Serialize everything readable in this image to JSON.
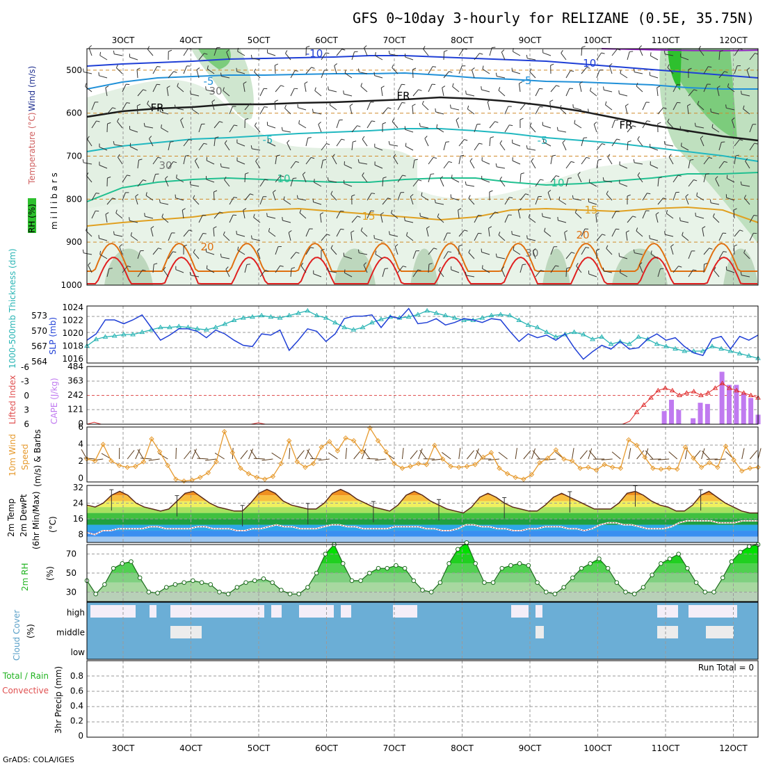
{
  "title": "GFS 0~10day 3-hourly for RELIZANE (0.5E, 35.75N)",
  "footer": "GrADS: COLA/IGES",
  "run_total": "Run Total = 0",
  "dates": [
    "3OCT",
    "4OCT",
    "5OCT",
    "6OCT",
    "7OCT",
    "8OCT",
    "9OCT",
    "10OCT",
    "11OCT",
    "12OCT"
  ],
  "colors": {
    "rh_shade": "#cfe6cf",
    "temp_orange": "#e08a00",
    "wind_speed": "#e69a2e",
    "rh_green": "#22b422",
    "cloud_blue": "#6baed6",
    "cape_purple": "#c07af0",
    "slp_blue": "#1f3fd6",
    "thickness_cyan": "#28b4b4"
  },
  "panels": {
    "upper": {
      "ylabels": {
        "rh": "RH (%)",
        "temp": "Temperature (°C)",
        "wind": "Wind (m/s)",
        "units": "m i l l i b a r s"
      },
      "yticks": [
        "500",
        "600",
        "700",
        "800",
        "900",
        "1000"
      ],
      "contour_labels": [
        "-10",
        "-10",
        "-5",
        "-5",
        "FR",
        "FR",
        "FR",
        "-5",
        "-5",
        "10",
        "10",
        "15",
        "15",
        "20",
        "20",
        "30",
        "30",
        "30"
      ]
    },
    "slp": {
      "ylabel_left": "1000-500mb Thickness (dm)",
      "ylabel_right": "SLP (mb)",
      "yticks_left": [
        "573",
        "570",
        "567",
        "564"
      ],
      "yticks_right": [
        "1024",
        "1022",
        "1020",
        "1018",
        "1016"
      ]
    },
    "cape": {
      "ylabel_left": "Lifted Index",
      "ylabel_right": "CAPE (J/kg)",
      "yticks_left": [
        "-6",
        "-3",
        "0",
        "3",
        "6"
      ],
      "yticks_right": [
        "484",
        "363",
        "242",
        "121",
        "0"
      ]
    },
    "wind10": {
      "ylabel_a": "10m Wind",
      "ylabel_b": "Speed",
      "ylabel_c": "(m/s) & Barbs",
      "yticks": [
        "6",
        "4",
        "2",
        "0"
      ]
    },
    "temp2m": {
      "ylabel_a": "2m Temp",
      "ylabel_b": "2m DewPt",
      "ylabel_c": "(6hr Min/Max)",
      "ylabel_d": "(°C)",
      "yticks": [
        "32",
        "24",
        "16",
        "8"
      ]
    },
    "rh2m": {
      "ylabel": "2m RH",
      "units": "(%)",
      "yticks": [
        "70",
        "50",
        "30"
      ]
    },
    "cloud": {
      "ylabel": "Cloud Cover",
      "units": "(%)",
      "yticks": [
        "high",
        "middle",
        "low"
      ]
    },
    "precip": {
      "ylabel_a": "Total / Rain",
      "ylabel_b": "Convective",
      "ylabel_c": "3hr Precip (mm)",
      "yticks": [
        "0.8",
        "0.6",
        "0.4",
        "0.2",
        "0"
      ]
    }
  },
  "chart_data": [
    {
      "type": "line",
      "name": "slp",
      "x_step_hours": 3,
      "values": [
        1018.6,
        1019.6,
        1021.8,
        1021.8,
        1021.2,
        1021.8,
        1022.6,
        1020.6,
        1018.6,
        1019.4,
        1020.4,
        1020.4,
        1020.0,
        1019.0,
        1020.2,
        1019.6,
        1018.6,
        1017.8,
        1017.6,
        1019.6,
        1019.4,
        1020.2,
        1017.0,
        1018.6,
        1020.4,
        1020.0,
        1018.4,
        1019.6,
        1022.0,
        1022.4,
        1022.4,
        1022.6,
        1020.6,
        1022.4,
        1022.0,
        1023.6,
        1021.2,
        1021.4,
        1022.0,
        1021.0,
        1021.4,
        1022.0,
        1021.8,
        1021.4,
        1022.0,
        1021.8,
        1020.0,
        1018.4,
        1019.6,
        1019.0,
        1019.4,
        1018.6,
        1019.6,
        1017.4,
        1015.6,
        1016.8,
        1017.8,
        1017.2,
        1018.4,
        1017.2,
        1017.4,
        1018.8,
        1019.6,
        1018.6,
        1019.0,
        1017.6,
        1016.6,
        1016.2,
        1018.8,
        1019.2,
        1017.2,
        1019.2,
        1018.6,
        1019.4
      ],
      "ylim": [
        1015,
        1024
      ]
    },
    {
      "type": "line",
      "name": "thickness",
      "values": [
        566.6,
        568.0,
        568.5,
        568.7,
        569.0,
        569.0,
        569.5,
        570.0,
        570.5,
        570.5,
        570.7,
        570.5,
        570.2,
        570.0,
        570.5,
        571.2,
        572.0,
        572.5,
        572.7,
        573.0,
        572.7,
        572.5,
        573.0,
        573.5,
        574.0,
        573.0,
        572.5,
        571.5,
        570.5,
        570.0,
        570.5,
        571.5,
        572.2,
        572.7,
        572.5,
        572.7,
        573.2,
        574.0,
        573.5,
        573.0,
        572.5,
        572.0,
        572.0,
        572.5,
        573.0,
        573.2,
        573.0,
        572.0,
        571.0,
        570.5,
        569.5,
        568.5,
        569.0,
        569.5,
        569.0,
        568.0,
        568.5,
        567.0,
        567.5,
        567.0,
        568.5,
        568.0,
        567.0,
        566.5,
        566.0,
        565.5,
        565.5,
        565.5,
        566.5,
        566.0,
        565.5,
        565.0,
        564.5,
        564.0
      ],
      "ylim": [
        563,
        575
      ]
    },
    {
      "type": "line",
      "name": "lifted_index",
      "values": [
        6,
        5.6,
        6,
        6,
        6,
        6,
        6,
        6,
        6,
        6,
        6,
        6,
        6,
        6,
        6,
        6,
        6,
        6,
        6,
        6,
        6,
        6,
        6,
        6,
        5.7,
        6,
        6,
        6,
        6,
        6,
        6,
        6,
        6,
        6,
        6,
        6,
        6,
        6,
        6,
        6,
        6,
        6,
        6,
        6,
        6,
        6,
        6,
        6,
        6,
        6,
        6,
        6,
        6,
        6,
        6,
        6,
        6,
        6,
        6,
        6,
        6,
        6,
        6,
        6,
        6,
        6,
        6,
        6,
        6,
        6,
        6,
        6,
        6,
        6,
        6,
        6,
        5.4,
        3.5,
        2,
        0.5,
        -1,
        -1.5,
        -1,
        0,
        -0.5,
        -0.8,
        0,
        -0.5,
        -1.5,
        -2.5,
        -1.5,
        -1.0,
        -0.5,
        0,
        0.5
      ],
      "ylim": [
        6,
        -6
      ]
    },
    {
      "type": "bar",
      "name": "cape",
      "values": [
        0,
        0,
        0,
        0,
        0,
        0,
        0,
        0,
        0,
        0,
        0,
        0,
        0,
        0,
        0,
        0,
        0,
        0,
        0,
        0,
        0,
        0,
        0,
        0,
        0,
        0,
        0,
        0,
        0,
        0,
        0,
        0,
        0,
        0,
        0,
        0,
        0,
        0,
        0,
        0,
        0,
        0,
        0,
        0,
        0,
        0,
        0,
        0,
        0,
        0,
        0,
        0,
        0,
        0,
        0,
        0,
        0,
        0,
        0,
        0,
        0,
        0,
        0,
        0,
        0,
        0,
        0,
        0,
        0,
        0,
        0,
        0,
        0,
        0,
        0,
        0,
        0,
        0,
        0,
        0,
        110,
        205,
        120,
        0,
        50,
        180,
        170,
        0,
        440,
        330,
        330,
        260,
        220,
        80
      ],
      "ylim": [
        0,
        484
      ]
    },
    {
      "type": "line",
      "name": "wind_speed_10m",
      "values": [
        2.5,
        2.3,
        4.1,
        2.3,
        1.8,
        1.6,
        1.7,
        2.2,
        4.7,
        3.3,
        1.8,
        0.3,
        0.1,
        0.2,
        0.5,
        1.0,
        2.2,
        5.5,
        3.2,
        1.5,
        0.9,
        0.5,
        0.3,
        0.6,
        2.0,
        4.5,
        2.2,
        1.6,
        2.0,
        3.8,
        4.4,
        3.4,
        4.8,
        4.5,
        3.3,
        5.9,
        4.5,
        3.3,
        2.0,
        1.5,
        1.7,
        2.0,
        1.9,
        4.0,
        2.5,
        1.7,
        1.6,
        1.7,
        1.9,
        2.7,
        3.2,
        1.5,
        0.9,
        0.5,
        0.3,
        0.8,
        2.1,
        2.6,
        3.5,
        2.5,
        2.3,
        1.5,
        1.6,
        1.3,
        1.9,
        1.6,
        1.5,
        4.6,
        4.0,
        2.7,
        1.5,
        1.4,
        1.5,
        1.4,
        3.8,
        2.6,
        1.6,
        2.1,
        1.6,
        3.9,
        2.4,
        1.2,
        1.5,
        1.6
      ],
      "ylim": [
        0,
        6
      ]
    },
    {
      "type": "area",
      "name": "temp_2m",
      "values": [
        23,
        22,
        24,
        28,
        30,
        28,
        24,
        22,
        21,
        20,
        21,
        25,
        29,
        30,
        27,
        24,
        22,
        21,
        20,
        20,
        24,
        29,
        31,
        29,
        25,
        23,
        22,
        21,
        21,
        24,
        29,
        31,
        29,
        26,
        24,
        22,
        21,
        20,
        23,
        28,
        30,
        28,
        25,
        23,
        21,
        20,
        19,
        22,
        27,
        29,
        27,
        24,
        22,
        21,
        20,
        20,
        23,
        27,
        29,
        27,
        25,
        23,
        21,
        21,
        21,
        24,
        29,
        30,
        28,
        25,
        23,
        22,
        20,
        20,
        23,
        28,
        30,
        27,
        24,
        22,
        20,
        19,
        19
      ],
      "ylim": [
        4,
        33
      ]
    },
    {
      "type": "line",
      "name": "dewpoint_2m",
      "values": [
        9,
        8,
        10,
        10,
        11,
        11,
        11,
        11,
        12,
        12,
        11,
        11,
        11,
        11,
        12,
        12,
        11,
        11,
        11,
        10,
        10,
        11,
        11,
        12,
        13,
        12,
        12,
        11,
        11,
        11,
        12,
        13,
        13,
        12,
        12,
        11,
        11,
        11,
        11,
        12,
        12,
        12,
        12,
        11,
        11,
        10,
        10,
        11,
        13,
        13,
        12,
        12,
        11,
        11,
        10,
        10,
        11,
        11,
        12,
        12,
        12,
        11,
        11,
        10,
        11,
        13,
        14,
        14,
        13,
        13,
        12,
        11,
        11,
        11,
        12,
        14,
        15,
        15,
        15,
        15,
        14,
        14,
        14,
        15,
        15,
        15
      ],
      "ylim": [
        4,
        33
      ]
    },
    {
      "type": "area",
      "name": "rh_2m",
      "values": [
        42,
        28,
        38,
        55,
        60,
        62,
        45,
        30,
        29,
        35,
        38,
        40,
        42,
        40,
        38,
        30,
        28,
        35,
        40,
        42,
        44,
        40,
        32,
        28,
        28,
        35,
        50,
        70,
        80,
        60,
        42,
        42,
        50,
        55,
        55,
        58,
        55,
        42,
        32,
        30,
        40,
        60,
        75,
        82,
        60,
        40,
        40,
        55,
        58,
        60,
        58,
        40,
        30,
        28,
        35,
        45,
        55,
        60,
        65,
        55,
        40,
        30,
        28,
        35,
        48,
        60,
        65,
        70,
        55,
        40,
        30,
        30,
        45,
        62,
        72,
        78,
        80
      ],
      "ylim": [
        20,
        80
      ]
    },
    {
      "type": "table",
      "name": "cloud_cover_layers",
      "rows": [
        "high",
        "middle",
        "low"
      ]
    },
    {
      "type": "bar",
      "name": "precip_3hr",
      "values": [],
      "ylim": [
        0,
        1
      ]
    }
  ]
}
